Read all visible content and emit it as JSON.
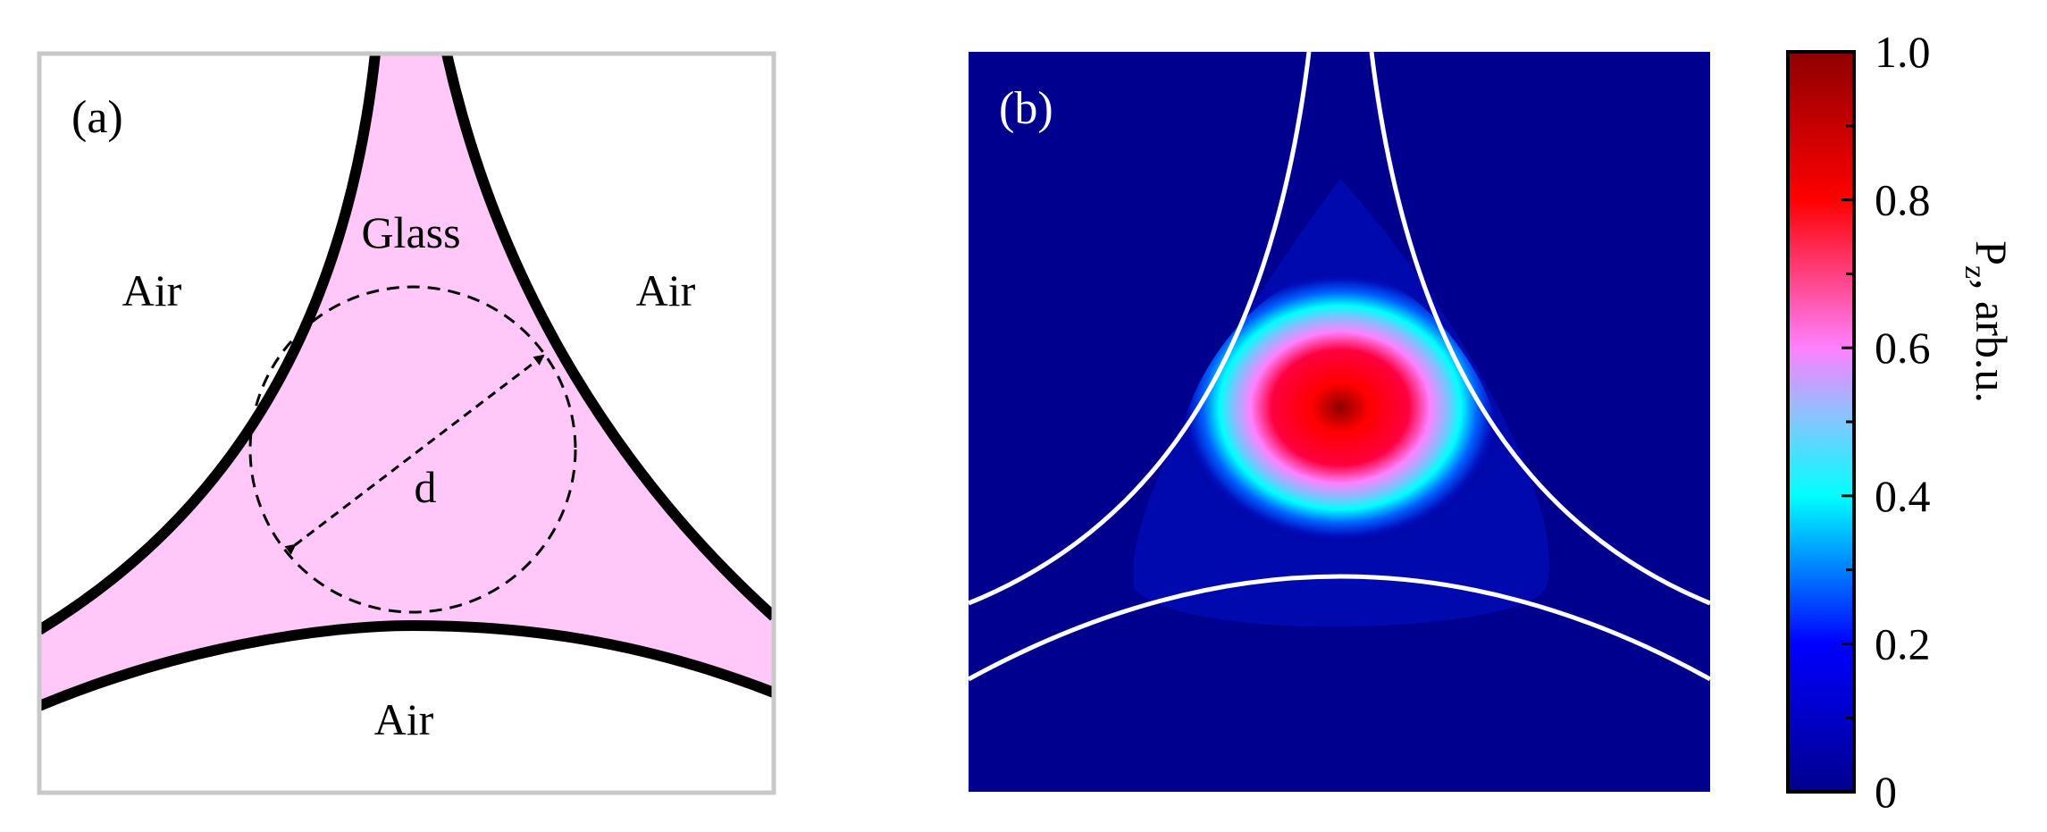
{
  "panel_a": {
    "label": "(a)",
    "glass_label": "Glass",
    "air_left_label": "Air",
    "air_right_label": "Air",
    "air_bottom_label": "Air",
    "diameter_label": "d",
    "glass_color": "#ffc8f8"
  },
  "panel_b": {
    "label": "(b)",
    "background_color": "#00008e",
    "boundary_color": "#ffffff"
  },
  "colorbar": {
    "axis_label_main": "P",
    "axis_label_sub": "z",
    "axis_label_unit": ", arb.u.",
    "ticks": [
      "0",
      "0.2",
      "0.4",
      "0.6",
      "0.8",
      "1.0"
    ],
    "range": [
      0,
      1
    ],
    "colors": [
      "#00008e",
      "#0000ff",
      "#00ffff",
      "#ff80ff",
      "#ff0000",
      "#8e0000"
    ]
  }
}
